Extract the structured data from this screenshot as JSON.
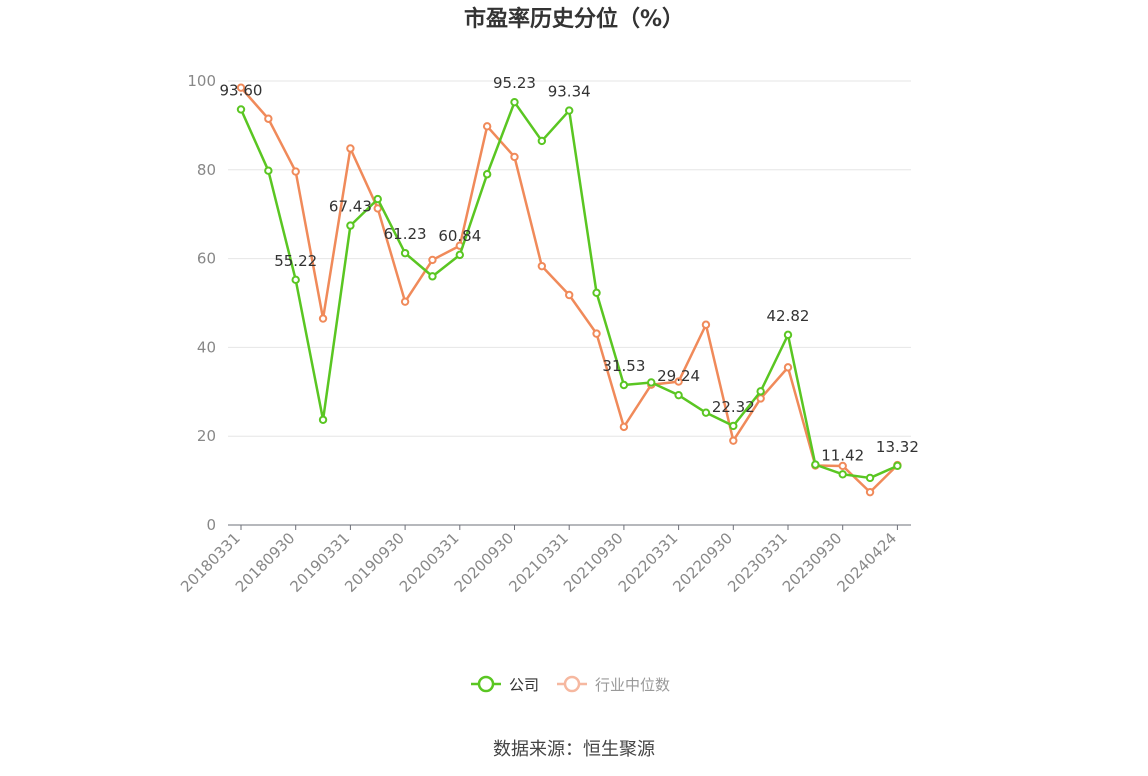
{
  "chart_data": {
    "type": "line",
    "title": "市盈率历史分位（%）",
    "source": "数据来源：恒生聚源",
    "ylim": [
      0,
      100
    ],
    "yticks": [
      0,
      20,
      40,
      60,
      80,
      100
    ],
    "xtick_labels": [
      "20180331",
      "20180930",
      "20190331",
      "20190930",
      "20200331",
      "20200930",
      "20210331",
      "20210930",
      "20220331",
      "20220930",
      "20230331",
      "20230930",
      "20240424"
    ],
    "grid": true,
    "legend_position": "bottom",
    "series": [
      {
        "name": "公司",
        "color": "#5ac622",
        "values": [
          93.6,
          79.8,
          55.22,
          23.7,
          67.43,
          73.4,
          61.23,
          56.0,
          60.84,
          79.0,
          95.23,
          86.5,
          93.34,
          52.3,
          31.53,
          32.1,
          29.24,
          25.3,
          22.32,
          30.1,
          42.82,
          13.6,
          11.42,
          10.6,
          13.32
        ]
      },
      {
        "name": "行业中位数",
        "color": "#f08a5a",
        "values": [
          98.5,
          91.5,
          79.6,
          46.5,
          84.8,
          71.3,
          50.3,
          59.7,
          62.9,
          89.8,
          82.9,
          58.3,
          51.8,
          43.1,
          22.1,
          31.6,
          32.3,
          45.1,
          19.0,
          28.5,
          35.5,
          13.4,
          13.3,
          7.4,
          13.5
        ]
      }
    ],
    "data_labels": [
      {
        "index": 0,
        "text": "93.60"
      },
      {
        "index": 2,
        "text": "55.22"
      },
      {
        "index": 4,
        "text": "67.43"
      },
      {
        "index": 6,
        "text": "61.23"
      },
      {
        "index": 8,
        "text": "60.84"
      },
      {
        "index": 10,
        "text": "95.23"
      },
      {
        "index": 12,
        "text": "93.34"
      },
      {
        "index": 14,
        "text": "31.53"
      },
      {
        "index": 16,
        "text": "29.24"
      },
      {
        "index": 18,
        "text": "22.32"
      },
      {
        "index": 20,
        "text": "42.82"
      },
      {
        "index": 22,
        "text": "11.42"
      },
      {
        "index": 24,
        "text": "13.32"
      }
    ]
  }
}
